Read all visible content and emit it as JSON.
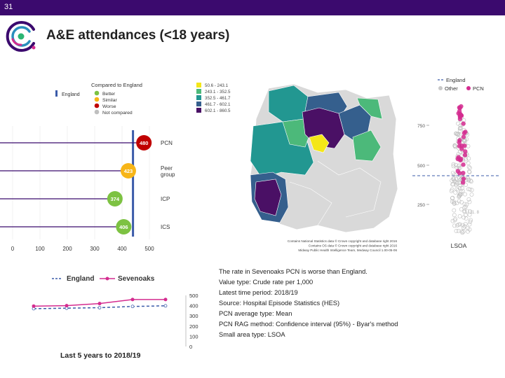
{
  "header": {
    "slide_number": "31",
    "title": "A&E attendances (<18 years)"
  },
  "colors": {
    "bar": "#3b0a6e",
    "england": "#3b5ba9",
    "better": "#7dc242",
    "similar": "#f7b517",
    "worse": "#c00000",
    "not_compared": "#bfbfbf",
    "pcn": "#d42c8f",
    "other": "#c8c8c8"
  },
  "comparison_legend": {
    "title": "Compared to England",
    "england_label": "England",
    "items": [
      {
        "label": "Better",
        "color": "#7dc242"
      },
      {
        "label": "Similar",
        "color": "#f7b517"
      },
      {
        "label": "Worse",
        "color": "#c00000"
      },
      {
        "label": "Not compared",
        "color": "#bfbfbf"
      }
    ]
  },
  "map_legend": {
    "items": [
      {
        "label": "50.6 - 243.1",
        "color": "#f4e619"
      },
      {
        "label": "243.1 - 352.5",
        "color": "#4cb97a"
      },
      {
        "label": "352.5 - 461.7",
        "color": "#229791"
      },
      {
        "label": "461.7 - 602.1",
        "color": "#355f8d"
      },
      {
        "label": "602.1 - 860.5",
        "color": "#4a1065"
      }
    ],
    "attribution": [
      "Contains National Statistics data © Crown copyright and database right 2016",
      "Contains OS data © Crown copyright and database right 2016",
      "Midway Public Health Intelligence Team, Medway Council 1.00-05-06"
    ]
  },
  "lsoa": {
    "legend_title": "England",
    "legend_other": "Other",
    "legend_pcn": "PCN",
    "ticks": [
      "750",
      "500",
      "250"
    ],
    "label": "LSOA",
    "note": "11. 8"
  },
  "info_lines": [
    "The rate in Sevenoaks PCN is worse than England.",
    "Value type: Crude rate per 1,000",
    "Latest time period: 2018/19",
    "Source: Hospital Episode Statistics (HES)",
    "PCN average type: Mean",
    "PCN RAG method: Confidence interval (95%) - Byar's method",
    "Small area type: LSOA"
  ],
  "trend_legend": {
    "england": "England",
    "sevenoaks": "Sevenoaks"
  },
  "trend_title": "Last 5 years to 2018/19",
  "chart_data": [
    {
      "type": "dot",
      "categories": [
        "PCN",
        "Peer group",
        "ICP",
        "ICS"
      ],
      "values": [
        480,
        423,
        374,
        406
      ],
      "value_labels": [
        "480",
        "423",
        "374",
        "406"
      ],
      "rag": [
        "worse",
        "similar",
        "better",
        "better"
      ],
      "england_value": 440,
      "xlim": [
        0,
        500
      ],
      "xticks": [
        "0",
        "100",
        "200",
        "300",
        "400",
        "500"
      ]
    },
    {
      "type": "line",
      "x": [
        1,
        2,
        3,
        4,
        5
      ],
      "series": [
        {
          "name": "England",
          "values": [
            370,
            375,
            380,
            392,
            398
          ]
        },
        {
          "name": "Sevenoaks",
          "values": [
            395,
            400,
            420,
            460,
            460
          ]
        }
      ],
      "ylim": [
        0,
        500
      ],
      "yticks": [
        "500",
        "400",
        "300",
        "200",
        "100",
        "0"
      ]
    }
  ]
}
